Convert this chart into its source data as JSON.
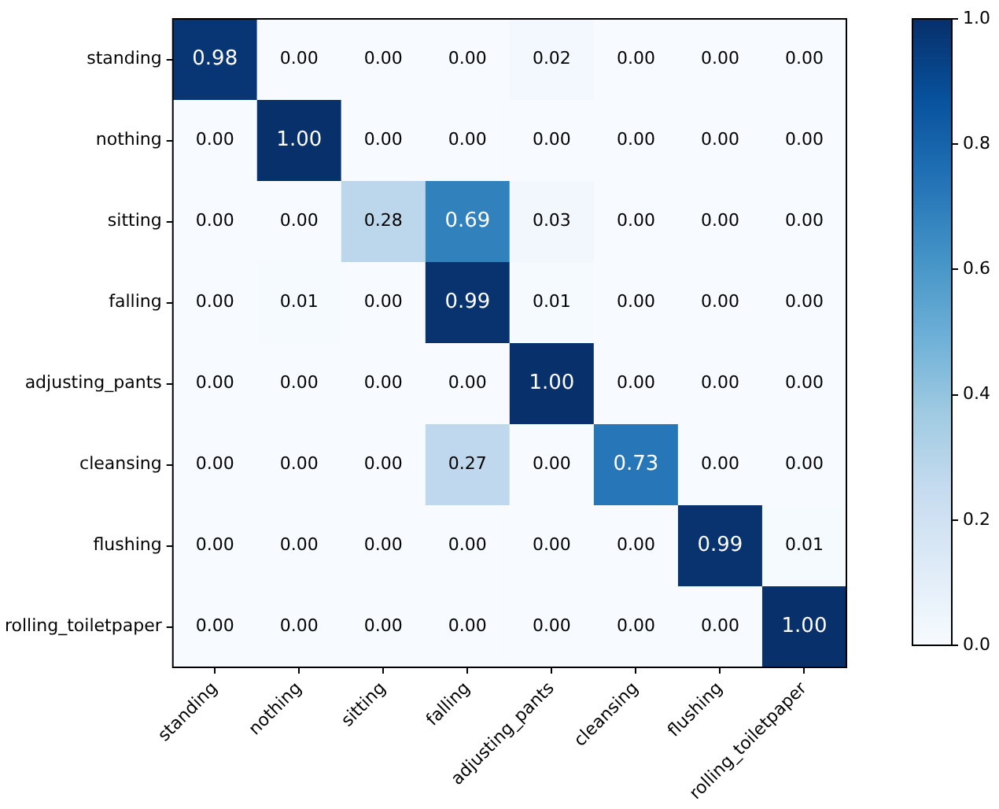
{
  "chart_data": {
    "type": "heatmap",
    "categories": [
      "standing",
      "nothing",
      "sitting",
      "falling",
      "adjusting_pants",
      "cleansing",
      "flushing",
      "rolling_toiletpaper"
    ],
    "y_categories": [
      "standing",
      "nothing",
      "sitting",
      "falling",
      "adjusting_pants",
      "cleansing",
      "flushing",
      "rolling_toiletpaper"
    ],
    "cells": [
      [
        0.98,
        0.0,
        0.0,
        0.0,
        0.02,
        0.0,
        0.0,
        0.0
      ],
      [
        0.0,
        1.0,
        0.0,
        0.0,
        0.0,
        0.0,
        0.0,
        0.0
      ],
      [
        0.0,
        0.0,
        0.28,
        0.69,
        0.03,
        0.0,
        0.0,
        0.0
      ],
      [
        0.0,
        0.01,
        0.0,
        0.99,
        0.01,
        0.0,
        0.0,
        0.0
      ],
      [
        0.0,
        0.0,
        0.0,
        0.0,
        1.0,
        0.0,
        0.0,
        0.0
      ],
      [
        0.0,
        0.0,
        0.0,
        0.27,
        0.0,
        0.73,
        0.0,
        0.0
      ],
      [
        0.0,
        0.0,
        0.0,
        0.0,
        0.0,
        0.0,
        0.99,
        0.01
      ],
      [
        0.0,
        0.0,
        0.0,
        0.0,
        0.0,
        0.0,
        0.0,
        1.0
      ]
    ],
    "cell_labels": [
      [
        "0.98",
        "0.00",
        "0.00",
        "0.00",
        "0.02",
        "0.00",
        "0.00",
        "0.00"
      ],
      [
        "0.00",
        "1.00",
        "0.00",
        "0.00",
        "0.00",
        "0.00",
        "0.00",
        "0.00"
      ],
      [
        "0.00",
        "0.00",
        "0.28",
        "0.69",
        "0.03",
        "0.00",
        "0.00",
        "0.00"
      ],
      [
        "0.00",
        "0.01",
        "0.00",
        "0.99",
        "0.01",
        "0.00",
        "0.00",
        "0.00"
      ],
      [
        "0.00",
        "0.00",
        "0.00",
        "0.00",
        "1.00",
        "0.00",
        "0.00",
        "0.00"
      ],
      [
        "0.00",
        "0.00",
        "0.00",
        "0.27",
        "0.00",
        "0.73",
        "0.00",
        "0.00"
      ],
      [
        "0.00",
        "0.00",
        "0.00",
        "0.00",
        "0.00",
        "0.00",
        "0.99",
        "0.01"
      ],
      [
        "0.00",
        "0.00",
        "0.00",
        "0.00",
        "0.00",
        "0.00",
        "0.00",
        "1.00"
      ]
    ],
    "clim": [
      0,
      1
    ],
    "cticks": [
      {
        "value": 0,
        "label": "0.0"
      },
      {
        "value": 0.2,
        "label": "0.2"
      },
      {
        "value": 0.4,
        "label": "0.4"
      },
      {
        "value": 0.6,
        "label": "0.6"
      },
      {
        "value": 0.8,
        "label": "0.8"
      },
      {
        "value": 1,
        "label": "1.0"
      }
    ]
  }
}
